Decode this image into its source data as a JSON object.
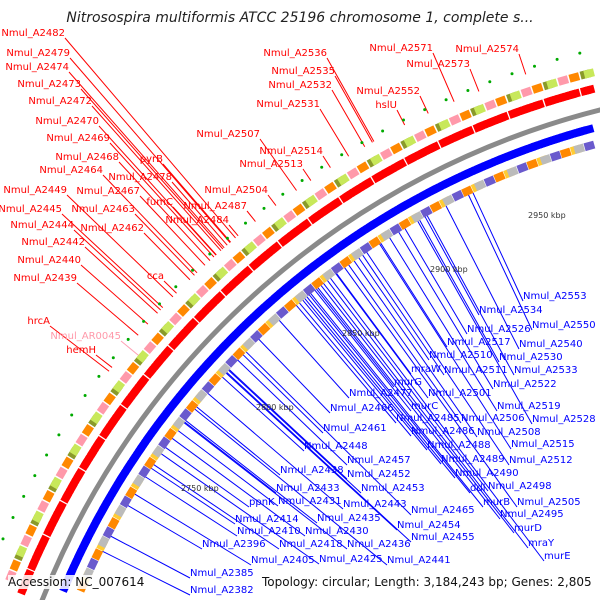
{
  "title": "Nitrosospira multiformis ATCC 25196 chromosome 1, complete s...",
  "accession": "Accession: NC_007614",
  "summary": "Topology: circular; Length: 3,184,243 bp; Genes: 2,805",
  "kbp_ticks": [
    "2950 kbp",
    "2900 kbp",
    "2850 kbp",
    "2800 kbp",
    "2750 kbp"
  ],
  "colors": {
    "forward_strand": "#ff0000",
    "reverse_strand": "#0000ff",
    "rna": "#ffa0b4",
    "backbone": "#888888"
  },
  "forward_labels": [
    "Nmul_A2482",
    "Nmul_A2479",
    "Nmul_A2474",
    "Nmul_A2473",
    "Nmul_A2472",
    "Nmul_A2470",
    "Nmul_A2469",
    "Nmul_A2468",
    "Nmul_A2464",
    "pyrB",
    "Nmul_A2478",
    "Nmul_A2449",
    "Nmul_A2467",
    "fumC",
    "Nmul_A2445",
    "Nmul_A2463",
    "Nmul_A2487",
    "Nmul_A2484",
    "Nmul_A2444",
    "Nmul_A2462",
    "Nmul_A2442",
    "Nmul_A2440",
    "Nmul_A2439",
    "cca",
    "Nmul_A2507",
    "Nmul_A2504",
    "Nmul_A2514",
    "Nmul_A2513",
    "Nmul_A2531",
    "Nmul_A2536",
    "Nmul_A2535",
    "Nmul_A2532",
    "Nmul_A2571",
    "Nmul_A2574",
    "Nmul_A2573",
    "Nmul_A2552",
    "hslU",
    "hrcA",
    "hemH"
  ],
  "rna_labels": [
    "Nmul_AR0045"
  ],
  "reverse_labels": [
    "Nmul_A2553",
    "Nmul_A2534",
    "Nmul_A2550",
    "Nmul_A2526",
    "Nmul_A2540",
    "Nmul_A2517",
    "Nmul_A2530",
    "Nmul_A2510",
    "mraW",
    "Nmul_A2511",
    "Nmul_A2533",
    "murG",
    "Nmul_A2522",
    "Nmul_A2477",
    "Nmul_A2501",
    "Nmul_A2519",
    "Nmul_A2466",
    "murC",
    "Nmul_A2485",
    "Nmul_A2506",
    "Nmul_A2528",
    "Nmul_A2461",
    "Nmul_A2486",
    "Nmul_A2508",
    "Nmul_A2448",
    "Nmul_A2488",
    "Nmul_A2515",
    "Nmul_A2457",
    "Nmul_A2489",
    "Nmul_A2512",
    "Nmul_A2438",
    "Nmul_A2452",
    "Nmul_A2490",
    "Nmul_A2453",
    "Nmul_A2498",
    "Nmul_A2433",
    "ddl",
    "Nmul_A2505",
    "ppnK",
    "Nmul_A2431",
    "Nmul_A2443",
    "murB",
    "Nmul_A2465",
    "Nmul_A2495",
    "Nmul_A2414",
    "Nmul_A2435",
    "Nmul_A2454",
    "murD",
    "Nmul_A2410",
    "Nmul_A2430",
    "Nmul_A2455",
    "mraY",
    "Nmul_A2396",
    "Nmul_A2418",
    "Nmul_A2436",
    "murE",
    "Nmul_A2405",
    "Nmul_A2425",
    "Nmul_A2441",
    "Nmul_A2385",
    "Nmul_A2382"
  ]
}
